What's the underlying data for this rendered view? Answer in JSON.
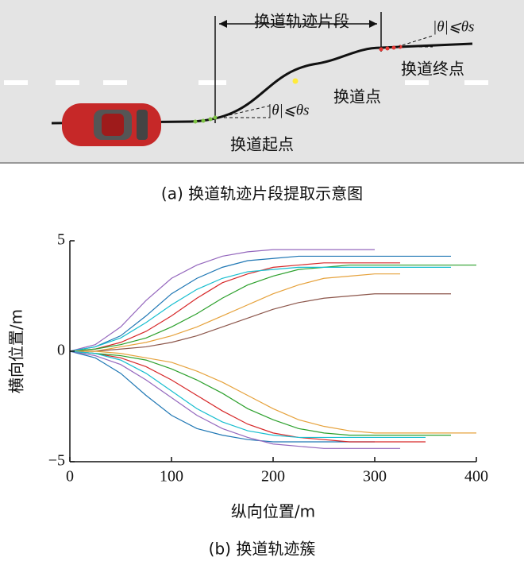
{
  "figure_a": {
    "labels": {
      "segment": "换道轨迹片段",
      "theta_end": "|θ|⩽θs",
      "end_point": "换道终点",
      "change_point": "换道点",
      "theta_start": "|θ|⩽θs",
      "start_point": "换道起点"
    },
    "caption": "(a) 换道轨迹片段提取示意图"
  },
  "chart_data": {
    "type": "line",
    "xlabel": "纵向位置/m",
    "ylabel": "横向位置/m",
    "caption": "(b) 换道轨迹簇",
    "x": [
      0,
      25,
      50,
      75,
      100,
      125,
      150,
      175,
      200,
      225,
      250,
      275,
      300,
      325,
      350,
      375,
      400
    ],
    "series": [
      {
        "color": "#1f77b4",
        "values": [
          0,
          0.2,
          0.7,
          1.6,
          2.6,
          3.3,
          3.8,
          4.1,
          4.2,
          4.3,
          4.3,
          4.3,
          4.3,
          4.3,
          4.3,
          4.3,
          null
        ]
      },
      {
        "color": "#d62728",
        "values": [
          0,
          0.1,
          0.4,
          0.9,
          1.6,
          2.4,
          3.1,
          3.5,
          3.8,
          3.9,
          4.0,
          4.0,
          4.0,
          4.0,
          null,
          null,
          null
        ]
      },
      {
        "color": "#2ca02c",
        "values": [
          0,
          0.1,
          0.3,
          0.6,
          1.1,
          1.7,
          2.4,
          3.0,
          3.4,
          3.7,
          3.8,
          3.9,
          3.9,
          3.9,
          3.9,
          3.9,
          3.9
        ]
      },
      {
        "color": "#9467bd",
        "values": [
          0,
          0.3,
          1.1,
          2.3,
          3.3,
          3.9,
          4.3,
          4.5,
          4.6,
          4.6,
          4.6,
          4.6,
          4.6,
          null,
          null,
          null,
          null
        ]
      },
      {
        "color": "#e6a23c",
        "values": [
          0,
          0,
          0.2,
          0.4,
          0.7,
          1.1,
          1.6,
          2.1,
          2.6,
          3.0,
          3.3,
          3.4,
          3.5,
          3.5,
          null,
          null,
          null
        ]
      },
      {
        "color": "#17becf",
        "values": [
          0,
          0.2,
          0.6,
          1.3,
          2.1,
          2.8,
          3.3,
          3.6,
          3.7,
          3.8,
          3.8,
          3.8,
          3.8,
          3.8,
          3.8,
          3.8,
          null
        ]
      },
      {
        "color": "#8c564b",
        "values": [
          0,
          0,
          0.1,
          0.2,
          0.4,
          0.7,
          1.1,
          1.5,
          1.9,
          2.2,
          2.4,
          2.5,
          2.6,
          2.6,
          2.6,
          2.6,
          null
        ]
      },
      {
        "color": "#1f77b4",
        "values": [
          0,
          -0.3,
          -1.0,
          -2.0,
          -2.9,
          -3.5,
          -3.8,
          -4.0,
          -4.1,
          -4.1,
          -4.1,
          -4.1,
          -4.1,
          null,
          null,
          null,
          null
        ]
      },
      {
        "color": "#d62728",
        "values": [
          0,
          -0.1,
          -0.3,
          -0.7,
          -1.3,
          -2.0,
          -2.7,
          -3.3,
          -3.7,
          -3.9,
          -4.0,
          -4.1,
          -4.1,
          -4.1,
          -4.1,
          null,
          null
        ]
      },
      {
        "color": "#2ca02c",
        "values": [
          0,
          -0.1,
          -0.2,
          -0.4,
          -0.8,
          -1.3,
          -1.9,
          -2.6,
          -3.1,
          -3.5,
          -3.7,
          -3.8,
          -3.8,
          -3.8,
          -3.8,
          -3.8,
          null
        ]
      },
      {
        "color": "#9467bd",
        "values": [
          0,
          -0.2,
          -0.6,
          -1.3,
          -2.1,
          -2.9,
          -3.5,
          -3.9,
          -4.2,
          -4.3,
          -4.4,
          -4.4,
          -4.4,
          -4.4,
          null,
          null,
          null
        ]
      },
      {
        "color": "#e6a23c",
        "values": [
          0,
          0,
          -0.1,
          -0.3,
          -0.5,
          -0.9,
          -1.4,
          -2.0,
          -2.6,
          -3.1,
          -3.4,
          -3.6,
          -3.7,
          -3.7,
          -3.7,
          -3.7,
          -3.7
        ]
      },
      {
        "color": "#17becf",
        "values": [
          0,
          -0.1,
          -0.4,
          -1.0,
          -1.8,
          -2.6,
          -3.2,
          -3.6,
          -3.8,
          -3.9,
          -3.9,
          -3.9,
          -3.9,
          -3.9,
          -3.9,
          null,
          null
        ]
      }
    ],
    "xlim": [
      0,
      400
    ],
    "xticks": [
      0,
      100,
      200,
      300,
      400
    ],
    "ylim": [
      -5,
      5
    ],
    "yticks": [
      {
        "value": -5,
        "label": "−5"
      },
      0,
      5
    ]
  }
}
